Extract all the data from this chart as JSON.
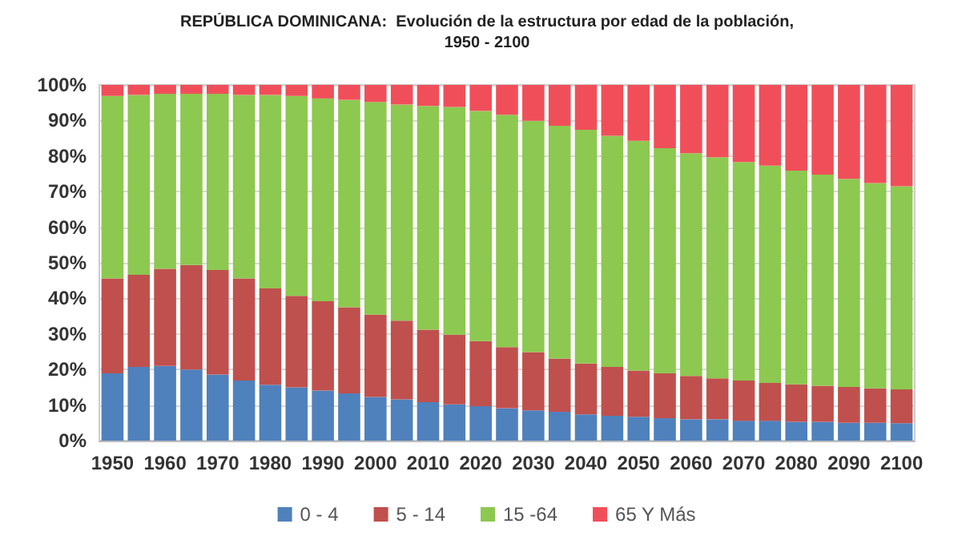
{
  "chart_data": {
    "type": "bar",
    "title": "REPÚBLICA DOMINICANA:  Evolución de la estructura por edad de la población,",
    "subtitle": "1950 - 2100",
    "stacked": true,
    "categories": [
      "1950",
      null,
      "1960",
      null,
      "1970",
      null,
      "1980",
      null,
      "1990",
      null,
      "2000",
      null,
      "2010",
      null,
      "2020",
      null,
      "2030",
      null,
      "2040",
      null,
      "2050",
      null,
      "2060",
      null,
      "2070",
      null,
      "2080",
      null,
      "2090",
      null,
      "2100"
    ],
    "series": [
      {
        "name": "0 - 4",
        "color": "#4f81bd",
        "values": [
          18.9,
          20.7,
          21.0,
          20.0,
          18.6,
          16.9,
          15.7,
          15.0,
          14.1,
          13.3,
          12.3,
          11.6,
          10.8,
          10.2,
          9.7,
          9.1,
          8.5,
          8.1,
          7.4,
          7.0,
          6.7,
          6.3,
          6.0,
          6.0,
          5.6,
          5.6,
          5.3,
          5.3,
          5.0,
          5.0,
          4.9
        ]
      },
      {
        "name": "5 - 14",
        "color": "#c0504d",
        "values": [
          26.7,
          25.9,
          27.3,
          29.4,
          29.4,
          28.7,
          27.1,
          25.7,
          25.1,
          24.2,
          23.1,
          22.1,
          20.4,
          19.6,
          18.3,
          17.2,
          16.4,
          15.0,
          14.3,
          13.7,
          13.0,
          12.6,
          12.2,
          11.5,
          11.3,
          10.6,
          10.5,
          10.1,
          10.1,
          9.7,
          9.5
        ]
      },
      {
        "name": "15 -64",
        "color": "#8dc850",
        "values": [
          51.3,
          50.6,
          49.2,
          48.1,
          49.5,
          51.6,
          54.4,
          56.2,
          57.0,
          58.3,
          59.8,
          60.8,
          62.9,
          64.0,
          64.7,
          65.3,
          65.0,
          65.4,
          65.7,
          65.0,
          64.6,
          63.3,
          62.6,
          62.2,
          61.4,
          61.1,
          60.1,
          59.4,
          58.5,
          57.7,
          57.1
        ]
      },
      {
        "name": "65 Y Más",
        "color": "#f04f5a",
        "values": [
          3.1,
          2.8,
          2.5,
          2.5,
          2.5,
          2.8,
          2.8,
          3.1,
          3.8,
          4.2,
          4.8,
          5.5,
          5.9,
          6.2,
          7.3,
          8.4,
          10.1,
          11.5,
          12.6,
          14.3,
          15.7,
          17.8,
          19.2,
          20.3,
          21.7,
          22.7,
          24.1,
          25.2,
          26.4,
          27.6,
          28.5
        ]
      }
    ],
    "ylim": [
      0,
      100
    ],
    "yticks": [
      {
        "value": 0,
        "label": "0%"
      },
      {
        "value": 10,
        "label": "10%"
      },
      {
        "value": 20,
        "label": "20%"
      },
      {
        "value": 30,
        "label": "30%"
      },
      {
        "value": 40,
        "label": "40%"
      },
      {
        "value": 50,
        "label": "50%"
      },
      {
        "value": 60,
        "label": "60%"
      },
      {
        "value": 70,
        "label": "70%"
      },
      {
        "value": 80,
        "label": "80%"
      },
      {
        "value": 90,
        "label": "90%"
      },
      {
        "value": 100,
        "label": "100%"
      }
    ],
    "grid": "y",
    "legend": "bottom"
  }
}
